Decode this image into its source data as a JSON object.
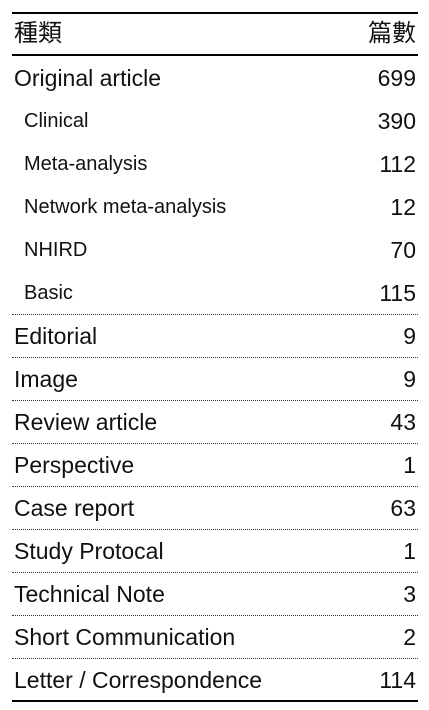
{
  "table": {
    "header": [
      "種類",
      "篇數"
    ],
    "rows": [
      {
        "label": "Original article",
        "count": 699,
        "children": [
          {
            "label": "Clinical",
            "count": 390
          },
          {
            "label": "Meta-analysis",
            "count": 112
          },
          {
            "label": "Network meta-analysis",
            "count": 12
          },
          {
            "label": "NHIRD",
            "count": 70
          },
          {
            "label": "Basic",
            "count": 115
          }
        ]
      },
      {
        "label": "Editorial",
        "count": 9
      },
      {
        "label": "Image",
        "count": 9
      },
      {
        "label": "Review article",
        "count": 43
      },
      {
        "label": "Perspective",
        "count": 1
      },
      {
        "label": "Case report",
        "count": 63
      },
      {
        "label": "Study Protocal",
        "count": 1
      },
      {
        "label": "Technical Note",
        "count": 3
      },
      {
        "label": "Short Communication",
        "count": 2
      },
      {
        "label": "Letter / Correspondence",
        "count": 114
      }
    ]
  }
}
